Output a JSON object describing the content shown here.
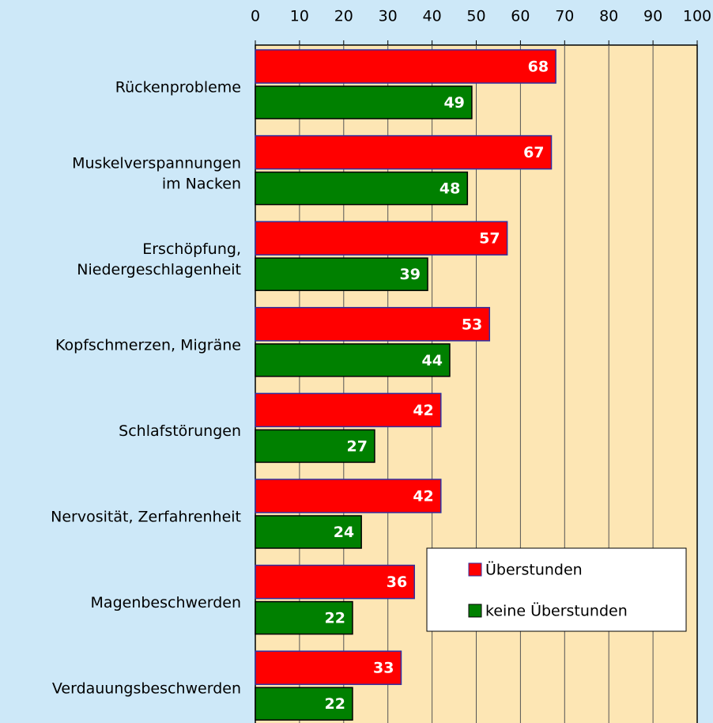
{
  "chart_data": {
    "type": "bar",
    "orientation": "horizontal",
    "categories": [
      "Rückenprobleme",
      "Muskelverspannungen\nim Nacken",
      "Erschöpfung,\nNiedergeschlagenheit",
      "Kopfschmerzen, Migräne",
      "Schlafstörungen",
      "Nervosität, Zerfahrenheit",
      "Magenbeschwerden",
      "Verdauungsbeschwerden"
    ],
    "series": [
      {
        "name": "Überstunden",
        "color": "#ff0000",
        "values": [
          68,
          67,
          57,
          53,
          42,
          42,
          36,
          33
        ]
      },
      {
        "name": "keine Überstunden",
        "color": "#008000",
        "values": [
          49,
          48,
          39,
          44,
          27,
          24,
          22,
          22
        ]
      }
    ],
    "xlim": [
      0,
      100
    ],
    "xticks": [
      0,
      10,
      20,
      30,
      40,
      50,
      60,
      70,
      80,
      90,
      100
    ],
    "grid": true
  }
}
